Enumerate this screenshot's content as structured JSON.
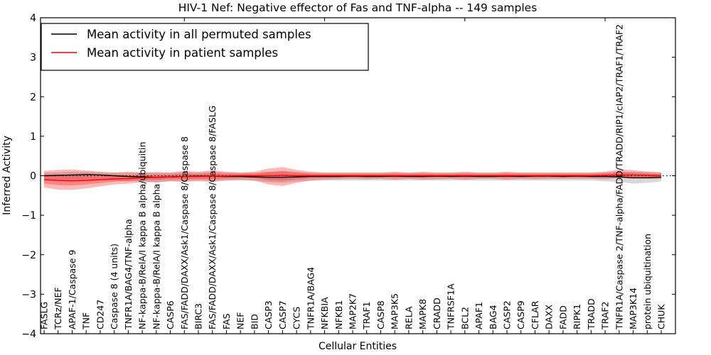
{
  "figure": {
    "title": "HIV-1 Nef: Negative effector of Fas and TNF-alpha -- 149 samples",
    "xlabel": "Cellular Entities",
    "ylabel": "Inferred Activity"
  },
  "chart_data": {
    "type": "line",
    "title": "HIV-1 Nef: Negative effector of Fas and TNF-alpha -- 149 samples",
    "xlabel": "Cellular Entities",
    "ylabel": "Inferred Activity",
    "ylim": [
      -4,
      4
    ],
    "yticks": [
      -4,
      -3,
      -2,
      -1,
      0,
      1,
      2,
      3,
      4
    ],
    "grid": false,
    "legend_position": "upper left",
    "zero_line": 0,
    "categories": [
      "FASLG",
      "TCRz/NEF",
      "APAF-1/Caspase 9",
      "TNF",
      "CD247",
      "Caspase 8 (4 units)",
      "TNFR1A/BAG4/TNF-alpha",
      "NF-kappa-B/RelA/I kappa B alpha/ubiquitin",
      "NF-kappa-B/RelA/I kappa B alpha",
      "CASP6",
      "FAS/FADD/DAXX/Ask1/Caspase 8/Caspase 8",
      "BIRC3",
      "FAS/FADD/DAXX/Ask1/Caspase 8/Caspase 8/FASLG",
      "FAS",
      "NEF",
      "BID",
      "CASP3",
      "CASP7",
      "CYCS",
      "TNFR1A/BAG4",
      "NFKBIA",
      "NFKB1",
      "MAP2K7",
      "TRAF1",
      "CASP8",
      "MAP3K5",
      "RELA",
      "MAPK8",
      "CRADD",
      "TNFRSF1A",
      "BCL2",
      "APAF1",
      "BAG4",
      "CASP2",
      "CASP9",
      "CFLAR",
      "DAXX",
      "FADD",
      "RIPK1",
      "TRADD",
      "TRAF2",
      "TNFR1A/Caspase 2/TNF-alpha/FADD/TRADD/RIP1/cIAP2/TRAF1/TRAF2",
      "MAP3K14",
      "protein ubiquitination",
      "CHUK"
    ],
    "series": [
      {
        "name": "Mean activity in all permuted samples",
        "color": "#000000",
        "values": [
          0.0,
          0.01,
          0.02,
          0.03,
          0.02,
          0.0,
          -0.02,
          -0.03,
          -0.04,
          -0.03,
          -0.02,
          -0.01,
          -0.01,
          -0.02,
          -0.02,
          -0.03,
          -0.04,
          -0.04,
          -0.03,
          -0.02,
          -0.02,
          -0.02,
          -0.01,
          -0.02,
          -0.02,
          -0.01,
          -0.02,
          -0.02,
          -0.01,
          -0.02,
          -0.01,
          -0.02,
          -0.02,
          -0.01,
          -0.02,
          -0.01,
          -0.01,
          -0.02,
          -0.01,
          -0.02,
          -0.02,
          -0.03,
          -0.05,
          -0.05,
          -0.04
        ]
      },
      {
        "name": "Mean activity in patient samples",
        "color": "#ff0000",
        "values": [
          -0.1,
          -0.12,
          -0.13,
          -0.12,
          -0.1,
          -0.08,
          -0.07,
          -0.05,
          -0.04,
          -0.03,
          -0.02,
          -0.02,
          -0.01,
          -0.01,
          0.0,
          0.0,
          0.0,
          0.01,
          0.0,
          0.0,
          0.0,
          0.0,
          0.0,
          0.0,
          0.0,
          0.0,
          0.0,
          0.0,
          0.0,
          0.0,
          0.0,
          0.0,
          0.0,
          0.0,
          0.0,
          0.0,
          0.0,
          0.0,
          0.0,
          0.0,
          0.01,
          0.02,
          0.02,
          0.01,
          0.0
        ]
      }
    ],
    "bands": [
      {
        "name": "permuted samples activity range",
        "color": "#999999",
        "opacity": 0.38,
        "upper": [
          0.08,
          0.09,
          0.1,
          0.1,
          0.09,
          0.08,
          0.08,
          0.08,
          0.08,
          0.08,
          0.09,
          0.08,
          0.1,
          0.08,
          0.08,
          0.08,
          0.1,
          0.12,
          0.1,
          0.08,
          0.08,
          0.08,
          0.08,
          0.08,
          0.08,
          0.08,
          0.08,
          0.08,
          0.08,
          0.08,
          0.08,
          0.08,
          0.08,
          0.08,
          0.08,
          0.08,
          0.08,
          0.08,
          0.08,
          0.08,
          0.09,
          0.1,
          0.1,
          0.1,
          0.09
        ],
        "lower": [
          -0.1,
          -0.12,
          -0.13,
          -0.12,
          -0.12,
          -0.12,
          -0.14,
          -0.15,
          -0.16,
          -0.14,
          -0.12,
          -0.12,
          -0.12,
          -0.12,
          -0.12,
          -0.13,
          -0.16,
          -0.18,
          -0.15,
          -0.13,
          -0.12,
          -0.12,
          -0.12,
          -0.12,
          -0.12,
          -0.12,
          -0.12,
          -0.12,
          -0.12,
          -0.12,
          -0.12,
          -0.12,
          -0.12,
          -0.12,
          -0.12,
          -0.12,
          -0.12,
          -0.12,
          -0.12,
          -0.12,
          -0.14,
          -0.16,
          -0.2,
          -0.18,
          -0.14
        ]
      },
      {
        "name": "patient samples activity range",
        "color": "#ff0000",
        "opacity": 0.28,
        "upper": [
          0.12,
          0.15,
          0.16,
          0.13,
          0.1,
          0.08,
          0.1,
          0.08,
          0.09,
          0.08,
          0.12,
          0.1,
          0.14,
          0.1,
          0.08,
          0.1,
          0.18,
          0.22,
          0.15,
          0.1,
          0.08,
          0.08,
          0.08,
          0.08,
          0.08,
          0.1,
          0.08,
          0.1,
          0.08,
          0.08,
          0.1,
          0.08,
          0.08,
          0.1,
          0.08,
          0.08,
          0.08,
          0.08,
          0.08,
          0.08,
          0.1,
          0.16,
          0.14,
          0.1,
          0.08
        ],
        "lower": [
          -0.3,
          -0.35,
          -0.36,
          -0.32,
          -0.27,
          -0.22,
          -0.2,
          -0.16,
          -0.17,
          -0.14,
          -0.16,
          -0.14,
          -0.16,
          -0.12,
          -0.1,
          -0.12,
          -0.22,
          -0.26,
          -0.18,
          -0.12,
          -0.1,
          -0.09,
          -0.08,
          -0.09,
          -0.08,
          -0.1,
          -0.08,
          -0.1,
          -0.09,
          -0.08,
          -0.1,
          -0.08,
          -0.08,
          -0.1,
          -0.08,
          -0.09,
          -0.08,
          -0.08,
          -0.08,
          -0.08,
          -0.09,
          -0.06,
          -0.08,
          -0.08,
          -0.08
        ]
      }
    ]
  }
}
